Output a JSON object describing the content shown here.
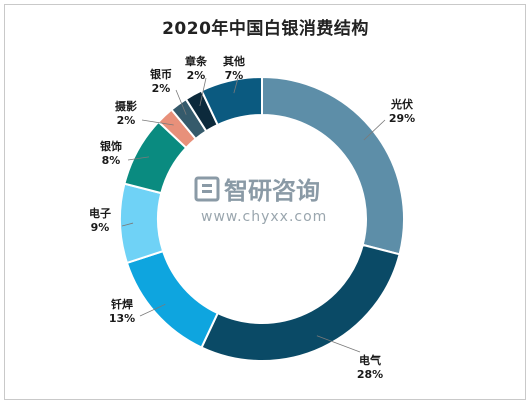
{
  "chart_data": {
    "type": "pie",
    "title": "2020年中国白银消费结构",
    "slices": [
      {
        "label": "光伏",
        "value": 29,
        "display": "29%",
        "color": "#5d8ea8"
      },
      {
        "label": "电气",
        "value": 28,
        "display": "28%",
        "color": "#0a4a66"
      },
      {
        "label": "钎焊",
        "value": 13,
        "display": "13%",
        "color": "#0ea5df"
      },
      {
        "label": "电子",
        "value": 9,
        "display": "9%",
        "color": "#6fd2f6"
      },
      {
        "label": "银饰",
        "value": 8,
        "display": "8%",
        "color": "#0a8b80"
      },
      {
        "label": "摄影",
        "value": 2,
        "display": "2%",
        "color": "#e8907a"
      },
      {
        "label": "银币",
        "value": 2,
        "display": "2%",
        "color": "#355a6b"
      },
      {
        "label": "章条",
        "value": 2,
        "display": "2%",
        "color": "#0c2a3c"
      },
      {
        "label": "其他",
        "value": 7,
        "display": "7%",
        "color": "#0b5a80"
      }
    ],
    "legend": "none"
  },
  "watermark": {
    "name": "智研咨询",
    "url": "www.chyxx.com"
  }
}
